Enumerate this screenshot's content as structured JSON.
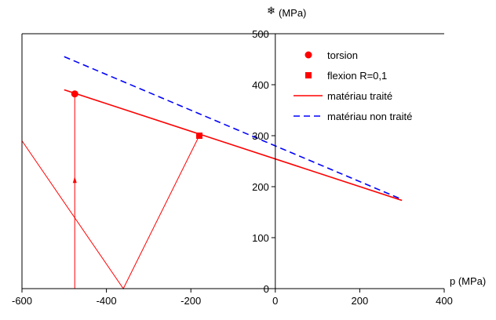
{
  "chart_data": {
    "type": "scatter",
    "xlabel": "p (MPa)",
    "ylabel": "(MPa)",
    "ylabel_symbol": "❄",
    "xlim": [
      -600,
      400
    ],
    "ylim": [
      0,
      500
    ],
    "xticks": [
      -600,
      -400,
      -200,
      0,
      200,
      400
    ],
    "yticks": [
      0,
      100,
      200,
      300,
      400,
      500
    ],
    "grid": false,
    "legend_position": "top-right",
    "series": [
      {
        "name": "torsion",
        "kind": "marker-circle",
        "color": "#ff0000",
        "points": [
          [
            -475,
            382
          ]
        ]
      },
      {
        "name": "flexion R=0,1",
        "kind": "marker-square",
        "color": "#ff0000",
        "points": [
          [
            -180,
            300
          ]
        ]
      },
      {
        "name": "matériau traité",
        "kind": "line-solid",
        "color": "#ff0000",
        "points": [
          [
            -500,
            390
          ],
          [
            300,
            173
          ]
        ]
      },
      {
        "name": "matériau non traité",
        "kind": "line-dashed",
        "color": "#0000ff",
        "points": [
          [
            -500,
            455
          ],
          [
            300,
            175
          ]
        ]
      }
    ],
    "loading_paths": [
      {
        "color": "#ff0000",
        "points": [
          [
            -475,
            0
          ],
          [
            -475,
            382
          ]
        ]
      },
      {
        "color": "#ff0000",
        "points": [
          [
            -600,
            290
          ],
          [
            -360,
            0
          ],
          [
            -180,
            300
          ]
        ]
      }
    ],
    "arrows": [
      {
        "color": "#ff0000",
        "at": [
          -475,
          215
        ],
        "direction": "up"
      }
    ]
  }
}
